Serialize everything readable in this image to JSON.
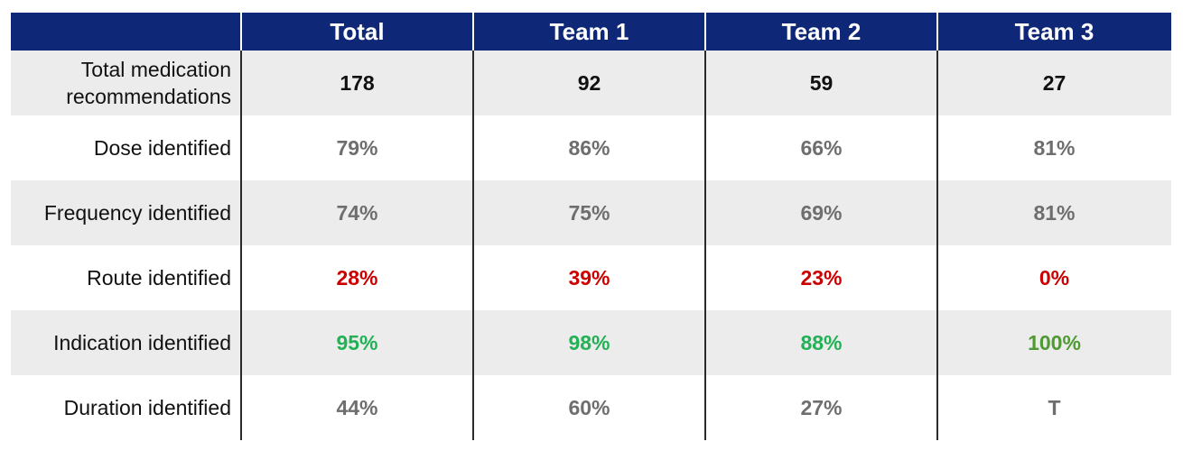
{
  "colors": {
    "header_bg": "#0f2777",
    "shaded_row": "#ececec",
    "neutral_value": "#6e6e6e",
    "red_value": "#cc0000",
    "green_value": "#22b155",
    "dark_green_value": "#4f9a32"
  },
  "table": {
    "columns": [
      "",
      "Total",
      "Team 1",
      "Team 2",
      "Team 3"
    ],
    "rows": [
      {
        "label": "Total medication recommendations",
        "values": [
          "178",
          "92",
          "59",
          "27"
        ]
      },
      {
        "label": "Dose identified",
        "values": [
          "79%",
          "86%",
          "66%",
          "81%"
        ]
      },
      {
        "label": "Frequency identified",
        "values": [
          "74%",
          "75%",
          "69%",
          "81%"
        ]
      },
      {
        "label": "Route identified",
        "values": [
          "28%",
          "39%",
          "23%",
          "0%"
        ]
      },
      {
        "label": "Indication identified",
        "values": [
          "95%",
          "98%",
          "88%",
          "100%"
        ]
      },
      {
        "label": "Duration identified",
        "values": [
          "44%",
          "60%",
          "27%",
          "T"
        ]
      }
    ]
  }
}
